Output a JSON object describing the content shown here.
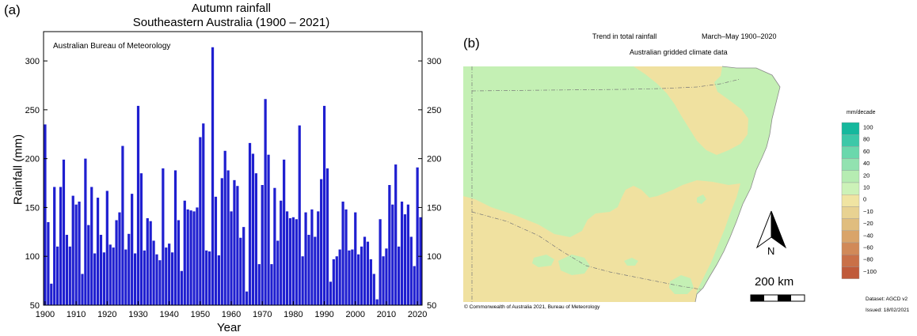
{
  "panel_a": {
    "label": "(a)",
    "title_line1": "Autumn rainfall",
    "title_line2": "Southeastern Australia (1900 – 2021)",
    "source": "Australian Bureau of Meteorology",
    "colors": {
      "bars": "#1f1fd0",
      "frame": "#000000"
    }
  },
  "chart_data": {
    "type": "bar",
    "title": "Autumn rainfall Southeastern Australia (1900 – 2021)",
    "xlabel": "Year",
    "ylabel": "Rainfall (mm)",
    "xlim": [
      1900,
      2021
    ],
    "ylim": [
      50,
      330
    ],
    "x_ticks": [
      1900,
      1910,
      1920,
      1930,
      1940,
      1950,
      1960,
      1970,
      1980,
      1990,
      2000,
      2010,
      2020
    ],
    "y_ticks": [
      50,
      100,
      150,
      200,
      250,
      300
    ],
    "y_ticks_right": true,
    "grid": false,
    "x": [
      1900,
      1901,
      1902,
      1903,
      1904,
      1905,
      1906,
      1907,
      1908,
      1909,
      1910,
      1911,
      1912,
      1913,
      1914,
      1915,
      1916,
      1917,
      1918,
      1919,
      1920,
      1921,
      1922,
      1923,
      1924,
      1925,
      1926,
      1927,
      1928,
      1929,
      1930,
      1931,
      1932,
      1933,
      1934,
      1935,
      1936,
      1937,
      1938,
      1939,
      1940,
      1941,
      1942,
      1943,
      1944,
      1945,
      1946,
      1947,
      1948,
      1949,
      1950,
      1951,
      1952,
      1953,
      1954,
      1955,
      1956,
      1957,
      1958,
      1959,
      1960,
      1961,
      1962,
      1963,
      1964,
      1965,
      1966,
      1967,
      1968,
      1969,
      1970,
      1971,
      1972,
      1973,
      1974,
      1975,
      1976,
      1977,
      1978,
      1979,
      1980,
      1981,
      1982,
      1983,
      1984,
      1985,
      1986,
      1987,
      1988,
      1989,
      1990,
      1991,
      1992,
      1993,
      1994,
      1995,
      1996,
      1997,
      1998,
      1999,
      2000,
      2001,
      2002,
      2003,
      2004,
      2005,
      2006,
      2007,
      2008,
      2009,
      2010,
      2011,
      2012,
      2013,
      2014,
      2015,
      2016,
      2017,
      2018,
      2019,
      2020,
      2021
    ],
    "values": [
      235,
      135,
      72,
      171,
      110,
      171,
      199,
      122,
      110,
      162,
      153,
      156,
      82,
      200,
      132,
      171,
      103,
      160,
      122,
      104,
      167,
      112,
      109,
      137,
      145,
      213,
      107,
      123,
      164,
      103,
      254,
      185,
      106,
      139,
      136,
      116,
      102,
      96,
      190,
      109,
      113,
      104,
      188,
      137,
      85,
      157,
      148,
      147,
      146,
      150,
      222,
      236,
      106,
      105,
      314,
      161,
      101,
      180,
      208,
      188,
      146,
      178,
      172,
      119,
      130,
      64,
      216,
      205,
      185,
      92,
      173,
      261,
      204,
      92,
      170,
      116,
      157,
      199,
      146,
      139,
      140,
      138,
      234,
      100,
      145,
      122,
      148,
      120,
      146,
      179,
      254,
      190,
      74,
      97,
      100,
      107,
      156,
      148,
      106,
      107,
      145,
      102,
      110,
      120,
      115,
      97,
      82,
      56,
      138,
      100,
      108,
      173,
      153,
      194,
      110,
      156,
      143,
      153,
      120,
      90,
      191,
      140
    ]
  },
  "panel_b": {
    "label": "(b)",
    "title": "Trend in total rainfall",
    "period": "March–May 1900–2020",
    "subtitle": "Australian gridded climate data",
    "copyright": "© Commonwealth of Australia 2021, Bureau of Meteorology",
    "north": "N",
    "scale": "200 km",
    "legend_title": "mm/decade",
    "legend_labels": [
      "100",
      "80",
      "60",
      "40",
      "20",
      "10",
      "0",
      "−10",
      "−20",
      "−40",
      "−60",
      "−80",
      "−100"
    ],
    "legend_colors": [
      "#15b89d",
      "#3cc8a8",
      "#6ad8ac",
      "#92e2b0",
      "#b6ecb2",
      "#ccf2b8",
      "#f0e4a2",
      "#e8d292",
      "#e0bd7e",
      "#d9a46a",
      "#d18958",
      "#c97048",
      "#c05a3a"
    ],
    "dataset": "Dataset: AGCD v2",
    "issued": "Issued: 18/02/2021",
    "colors": {
      "green": "#c4f0b4",
      "tan": "#f0e1a0",
      "sea": "#ffffff"
    }
  }
}
